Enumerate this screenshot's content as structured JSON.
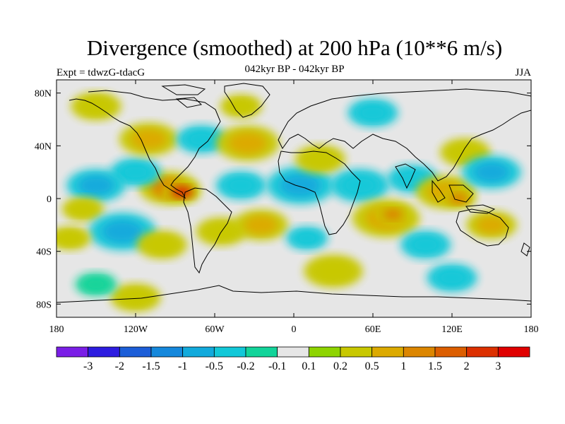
{
  "chart_data": {
    "type": "heatmap",
    "title": "Divergence (smoothed) at 200 hPa (10**6 m/s)",
    "subtitle": "042kyr BP - 042kyr BP",
    "left_label": "Expt = tdwzG-tdacG",
    "season": "JJA",
    "x_ticks": [
      "180",
      "120W",
      "60W",
      "0",
      "60E",
      "120E",
      "180"
    ],
    "y_ticks": [
      "80N",
      "40N",
      "0",
      "40S",
      "80S"
    ],
    "xlim": [
      -180,
      180
    ],
    "ylim": [
      -90,
      90
    ],
    "colorbar_labels": [
      "-3",
      "-2",
      "-1.5",
      "-1",
      "-0.5",
      "-0.2",
      "-0.1",
      "0.1",
      "0.2",
      "0.5",
      "1",
      "1.5",
      "2",
      "3"
    ],
    "colorbar_colors": [
      "#7a1ee6",
      "#2d1ce0",
      "#1c5ed8",
      "#1588dc",
      "#12aadc",
      "#12c8d8",
      "#12d49a",
      "#e6e6e6",
      "#8ed400",
      "#c8c800",
      "#dcaa00",
      "#dc8600",
      "#dc5e00",
      "#dc3000",
      "#e00000"
    ],
    "field_blobs": [
      {
        "lon": -95,
        "lat": 8,
        "r": 14,
        "value": 1.4
      },
      {
        "lon": -85,
        "lat": 5,
        "r": 9,
        "value": 2.2
      },
      {
        "lon": -120,
        "lat": 20,
        "r": 12,
        "value": -0.4
      },
      {
        "lon": -150,
        "lat": 10,
        "r": 14,
        "value": -0.7
      },
      {
        "lon": -160,
        "lat": -8,
        "r": 10,
        "value": 0.3
      },
      {
        "lon": -130,
        "lat": -25,
        "r": 16,
        "value": -0.6
      },
      {
        "lon": -170,
        "lat": -30,
        "r": 10,
        "value": 0.3
      },
      {
        "lon": -100,
        "lat": -35,
        "r": 12,
        "value": 0.4
      },
      {
        "lon": -110,
        "lat": 45,
        "r": 14,
        "value": 0.5
      },
      {
        "lon": -70,
        "lat": 45,
        "r": 12,
        "value": -0.5
      },
      {
        "lon": -35,
        "lat": 42,
        "r": 15,
        "value": 0.6
      },
      {
        "lon": -40,
        "lat": 10,
        "r": 12,
        "value": -0.4
      },
      {
        "lon": -55,
        "lat": -25,
        "r": 12,
        "value": 0.3
      },
      {
        "lon": -25,
        "lat": -20,
        "r": 13,
        "value": 0.7
      },
      {
        "lon": 5,
        "lat": 10,
        "r": 16,
        "value": -0.6
      },
      {
        "lon": 20,
        "lat": 30,
        "r": 12,
        "value": 0.3
      },
      {
        "lon": 10,
        "lat": -30,
        "r": 10,
        "value": -0.3
      },
      {
        "lon": 50,
        "lat": 10,
        "r": 14,
        "value": -0.5
      },
      {
        "lon": 70,
        "lat": -15,
        "r": 16,
        "value": 0.9
      },
      {
        "lon": 75,
        "lat": -12,
        "r": 8,
        "value": 1.3
      },
      {
        "lon": 90,
        "lat": 15,
        "r": 12,
        "value": -0.4
      },
      {
        "lon": 100,
        "lat": -35,
        "r": 12,
        "value": -0.5
      },
      {
        "lon": 115,
        "lat": 5,
        "r": 14,
        "value": 0.8
      },
      {
        "lon": 125,
        "lat": 0,
        "r": 8,
        "value": 1.2
      },
      {
        "lon": 130,
        "lat": 35,
        "r": 12,
        "value": 0.4
      },
      {
        "lon": 150,
        "lat": 20,
        "r": 14,
        "value": -0.6
      },
      {
        "lon": 150,
        "lat": -20,
        "r": 12,
        "value": 0.5
      },
      {
        "lon": -150,
        "lat": 70,
        "r": 12,
        "value": 0.2
      },
      {
        "lon": -40,
        "lat": 70,
        "r": 10,
        "value": 0.3
      },
      {
        "lon": 60,
        "lat": 65,
        "r": 12,
        "value": -0.3
      },
      {
        "lon": 30,
        "lat": -55,
        "r": 14,
        "value": 0.3
      },
      {
        "lon": -120,
        "lat": -75,
        "r": 12,
        "value": 0.2
      },
      {
        "lon": -150,
        "lat": -65,
        "r": 10,
        "value": -0.2
      },
      {
        "lon": 120,
        "lat": -60,
        "r": 12,
        "value": -0.3
      }
    ]
  }
}
